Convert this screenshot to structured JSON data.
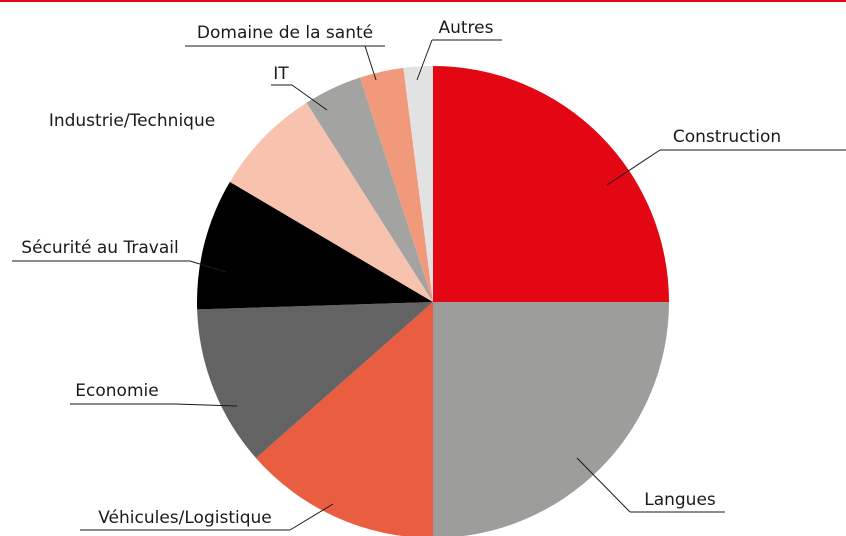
{
  "chart_data": {
    "type": "pie",
    "categories": [
      "Construction",
      "Langues",
      "Véhicules/Logistique",
      "Economie",
      "Sécurité au Travail",
      "Industrie/Technique",
      "IT",
      "Domaine de la santé",
      "Autres"
    ],
    "values": [
      25,
      25,
      13.5,
      11,
      9,
      7.5,
      4,
      3,
      2
    ],
    "colors": [
      "#e30613",
      "#9d9d9c",
      "#e95e41",
      "#646363",
      "#000000",
      "#f8c3ae",
      "#a3a3a2",
      "#f19a7b",
      "#e2e2e2"
    ]
  }
}
